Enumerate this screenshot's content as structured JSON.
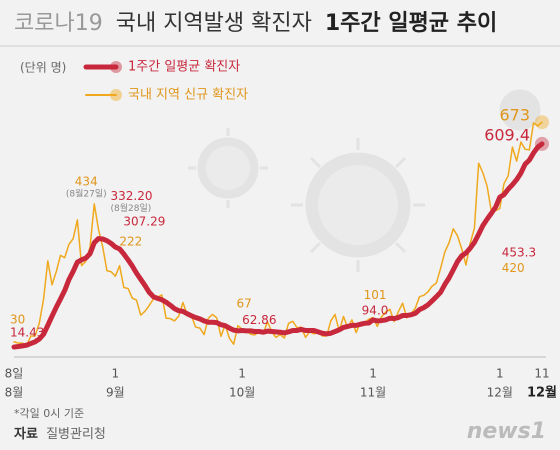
{
  "chart_data": {
    "type": "line",
    "title_prefix": "코로나19",
    "title": "국내 지역발생 확진자",
    "title_emphasis": "1주간 일평균 추이",
    "unit": "(단위 명)",
    "footnote": "*각일 0시 기준",
    "source_label": "자료",
    "source": "질병관리청",
    "logo": "news1",
    "ylim": [
      0,
      700
    ],
    "categories": [
      "8일",
      null,
      null,
      null,
      null,
      null,
      null,
      null,
      null,
      null,
      null,
      null,
      null,
      null,
      null,
      null,
      null,
      null,
      null,
      null,
      null,
      null,
      null,
      null,
      "1",
      null,
      null,
      null,
      null,
      null,
      null,
      null,
      null,
      null,
      null,
      null,
      null,
      null,
      null,
      null,
      null,
      null,
      null,
      null,
      null,
      null,
      null,
      null,
      null,
      null,
      null,
      null,
      null,
      null,
      "1",
      null,
      null,
      null,
      null,
      null,
      null,
      null,
      null,
      null,
      null,
      null,
      null,
      null,
      null,
      null,
      null,
      null,
      null,
      null,
      null,
      null,
      null,
      null,
      null,
      null,
      null,
      null,
      null,
      null,
      null,
      "1",
      null,
      null,
      null,
      null,
      null,
      null,
      null,
      null,
      null,
      null,
      null,
      null,
      null,
      null,
      null,
      null,
      null,
      null,
      null,
      null,
      null,
      null,
      null,
      null,
      null,
      null,
      null,
      null,
      null,
      "1",
      null,
      null,
      null,
      null,
      null,
      null,
      null,
      null,
      null,
      "11"
    ],
    "category_months": [
      "8월",
      null,
      null,
      null,
      null,
      null,
      null,
      null,
      null,
      null,
      null,
      null,
      null,
      null,
      null,
      null,
      null,
      null,
      null,
      null,
      null,
      null,
      null,
      null,
      "9월",
      null,
      null,
      null,
      null,
      null,
      null,
      null,
      null,
      null,
      null,
      null,
      null,
      null,
      null,
      null,
      null,
      null,
      null,
      null,
      null,
      null,
      null,
      null,
      null,
      null,
      null,
      null,
      null,
      null,
      "10월",
      null,
      null,
      null,
      null,
      null,
      null,
      null,
      null,
      null,
      null,
      null,
      null,
      null,
      null,
      null,
      null,
      null,
      null,
      null,
      null,
      null,
      null,
      null,
      null,
      null,
      null,
      null,
      null,
      null,
      null,
      "11월",
      null,
      null,
      null,
      null,
      null,
      null,
      null,
      null,
      null,
      null,
      null,
      null,
      null,
      null,
      null,
      null,
      null,
      null,
      null,
      null,
      null,
      null,
      null,
      null,
      null,
      null,
      null,
      null,
      null,
      "12월",
      null,
      null,
      null,
      null,
      null,
      null,
      null,
      null,
      null,
      "12월"
    ],
    "series": [
      {
        "name": "1주간 일평균 확진자",
        "color": "#c8283c",
        "values": [
          14.43,
          16,
          18,
          20,
          25,
          30,
          38,
          52,
          78,
          105,
          131,
          155,
          180,
          212,
          236,
          263,
          270,
          275,
          288,
          320,
          332.2,
          331,
          326,
          318,
          307.29,
          302,
          287,
          270,
          252,
          231,
          213,
          195,
          175,
          162,
          157,
          153,
          146,
          137,
          127,
          121,
          119,
          112,
          106,
          101,
          97,
          91,
          87,
          87,
          86,
          80,
          77,
          70,
          64,
          62,
          62.86,
          62,
          62,
          60,
          60,
          58,
          61,
          60,
          59,
          58,
          56,
          59,
          63,
          63,
          66,
          63,
          63,
          63,
          59,
          55,
          53,
          55,
          60,
          65,
          72,
          75,
          78,
          78,
          81,
          84,
          85,
          94,
          91,
          92,
          94,
          99,
          98,
          101,
          107,
          107,
          109,
          113,
          124,
          130,
          138,
          150,
          162,
          175,
          198,
          217,
          241,
          265,
          282,
          290,
          304,
          321,
          345,
          370,
          389,
          406,
          424,
          453.3,
          461,
          477,
          490,
          505,
          524,
          550,
          562,
          583,
          600,
          609.4
        ],
        "value_labels": {
          "0": "14.43",
          "20": "332.20",
          "24": "307.29",
          "54": "62.86",
          "85": "94.0",
          "115": "453.3",
          "125": "609.4"
        },
        "value_notes": {
          "20": "(8월28일)"
        }
      },
      {
        "name": "국내 지역 신규 확진자",
        "color": "#f0a81c",
        "values": [
          30,
          26,
          26,
          20,
          47,
          47,
          85,
          155,
          267,
          197,
          235,
          283,
          276,
          315,
          332,
          387,
          253,
          266,
          307,
          434,
          359,
          308,
          238,
          235,
          222,
          253,
          189,
          186,
          158,
          152,
          108,
          119,
          136,
          155,
          161,
          167,
          99,
          98,
          91,
          105,
          145,
          109,
          106,
          73,
          70,
          51,
          99,
          110,
          100,
          46,
          80,
          40,
          23,
          77,
          67,
          63,
          52,
          50,
          59,
          53,
          89,
          60,
          43,
          51,
          41,
          84,
          90,
          71,
          73,
          43,
          59,
          53,
          57,
          47,
          47,
          91,
          110,
          61,
          104,
          72,
          94,
          57,
          87,
          86,
          96,
          101,
          75,
          103,
          117,
          125,
          89,
          118,
          143,
          100,
          113,
          128,
          162,
          166,
          176,
          193,
          202,
          245,
          293,
          320,
          361,
          340,
          302,
          255,
          318,
          363,
          553,
          525,
          486,
          413,
          414,
          420,
          493,
          516,
          600,
          559,
          615,
          594,
          592,
          671,
          662,
          673
        ],
        "value_labels": {
          "0": "30",
          "19": "434",
          "24": "222",
          "54": "67",
          "85": "101",
          "115": "420",
          "125": "673"
        },
        "value_notes": {
          "19": "(8월27일)"
        }
      }
    ]
  }
}
